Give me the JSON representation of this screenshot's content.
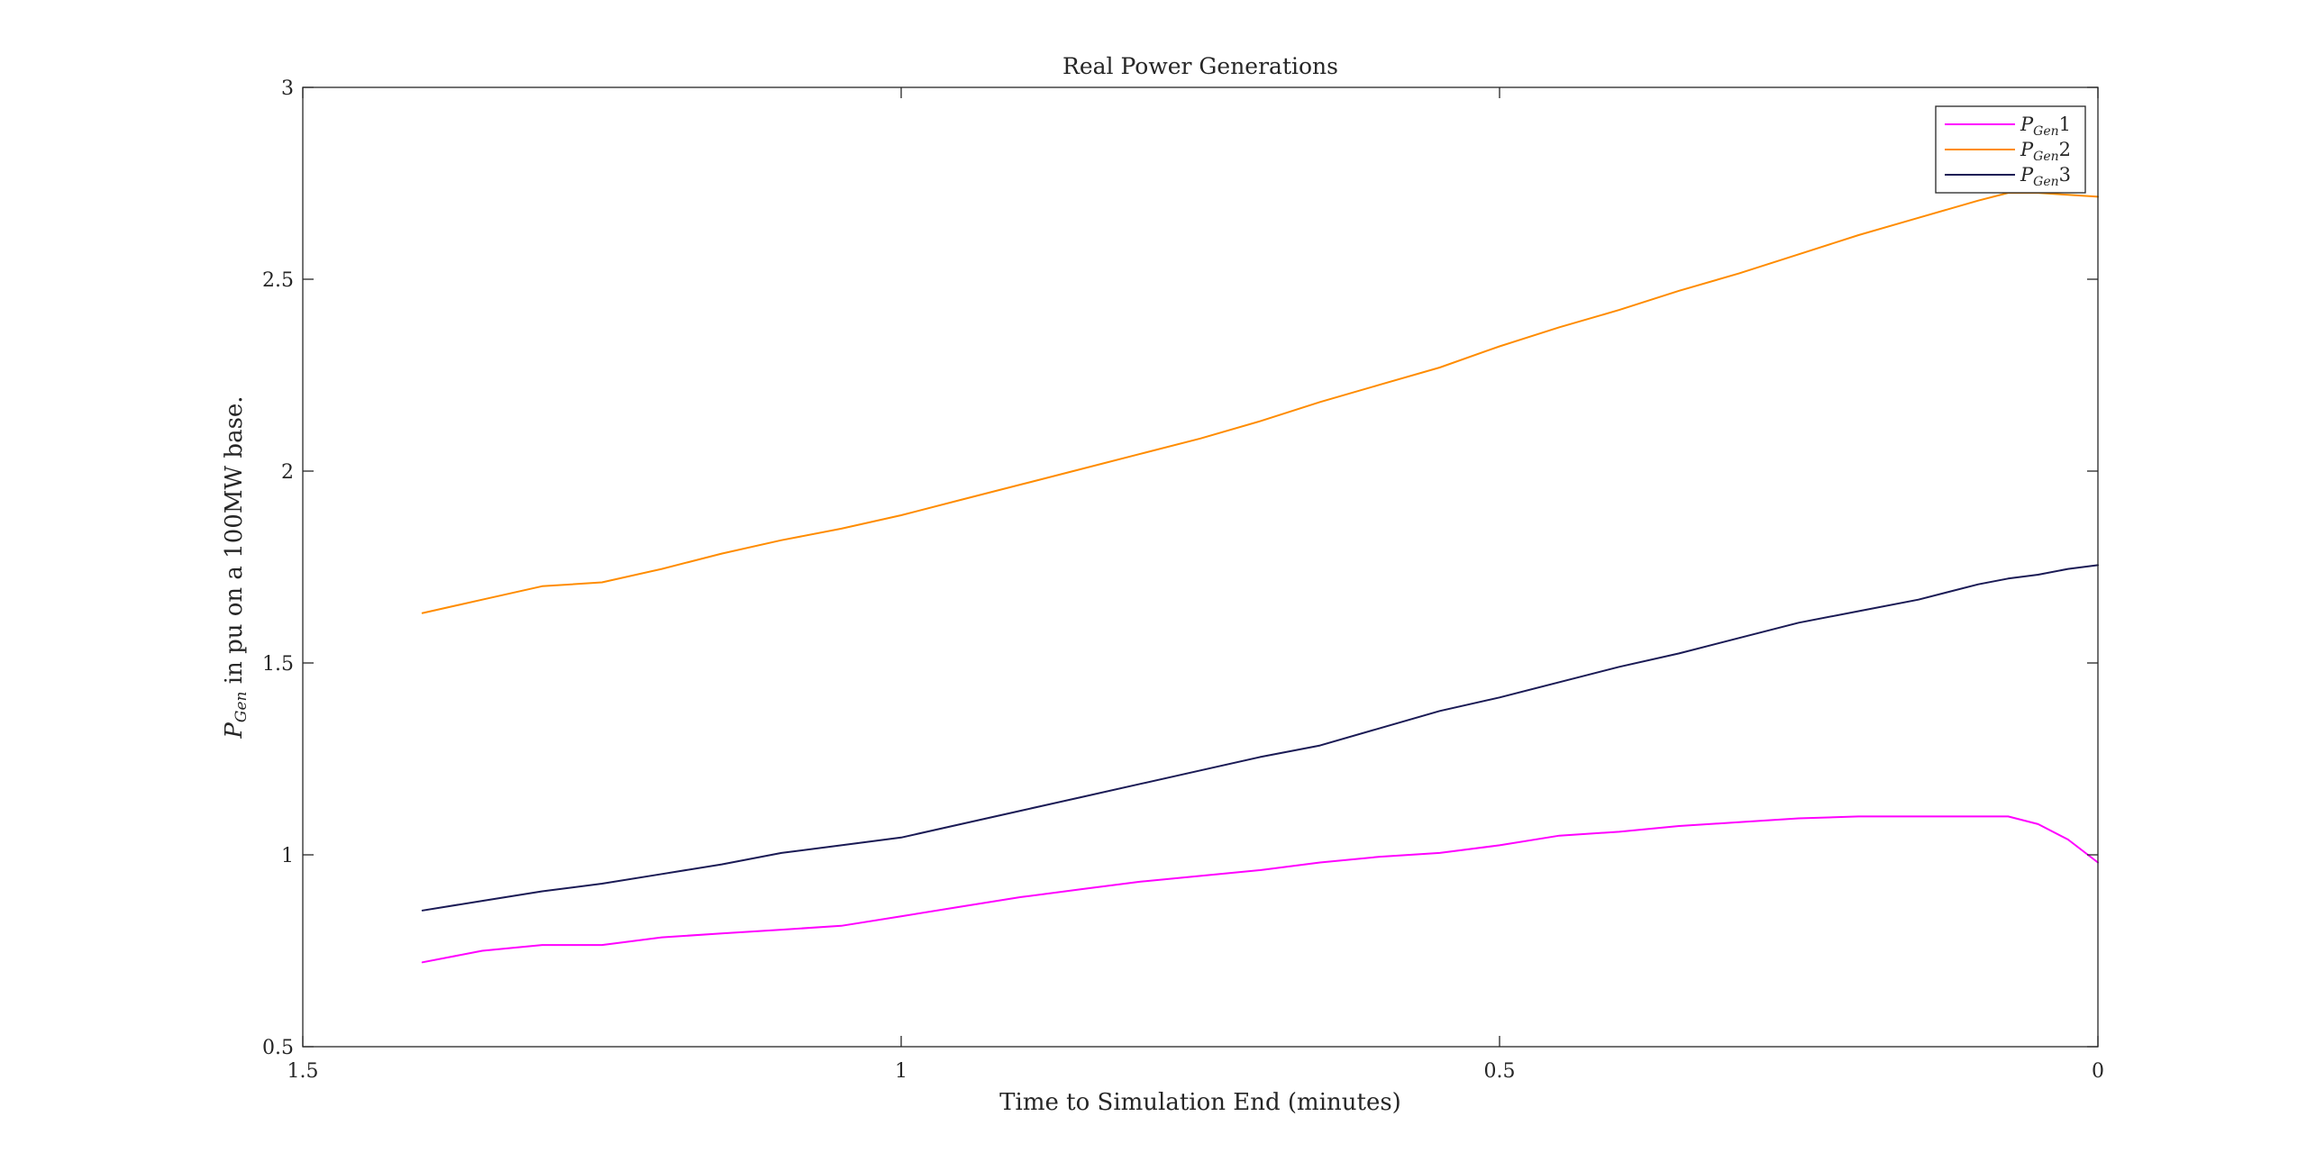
{
  "chart_data": {
    "type": "line",
    "title": "Real Power Generations",
    "xlabel": "Time to Simulation End (minutes)",
    "ylabel": {
      "symbol": "P",
      "subscript": "Gen",
      "rest": " in pu on a 100MW base."
    },
    "xlim": [
      0,
      1.5
    ],
    "x_reversed": true,
    "ylim": [
      0.5,
      3
    ],
    "xticks": [
      1.5,
      1,
      0.5,
      0
    ],
    "xtick_labels": [
      "1.5",
      "1",
      "0.5",
      "0"
    ],
    "yticks": [
      0.5,
      1,
      1.5,
      2,
      2.5,
      3
    ],
    "ytick_labels": [
      "0.5",
      "1",
      "1.5",
      "2",
      "2.5",
      "3"
    ],
    "grid": false,
    "legend_position": "top-right",
    "series": [
      {
        "name": "P_Gen1",
        "legend": {
          "symbol": "P",
          "subscript": "Gen",
          "suffix": "1"
        },
        "color": "#ff00ff",
        "x": [
          1.4,
          1.35,
          1.3,
          1.25,
          1.2,
          1.15,
          1.1,
          1.05,
          1.0,
          0.95,
          0.9,
          0.85,
          0.8,
          0.75,
          0.7,
          0.65,
          0.6,
          0.55,
          0.5,
          0.45,
          0.4,
          0.35,
          0.3,
          0.25,
          0.2,
          0.15,
          0.1,
          0.075,
          0.05,
          0.025,
          0.0
        ],
        "y": [
          0.72,
          0.75,
          0.765,
          0.765,
          0.785,
          0.795,
          0.805,
          0.815,
          0.84,
          0.865,
          0.89,
          0.91,
          0.93,
          0.945,
          0.96,
          0.98,
          0.995,
          1.005,
          1.025,
          1.05,
          1.06,
          1.075,
          1.085,
          1.095,
          1.1,
          1.1,
          1.1,
          1.1,
          1.08,
          1.04,
          0.98
        ]
      },
      {
        "name": "P_Gen2",
        "legend": {
          "symbol": "P",
          "subscript": "Gen",
          "suffix": "2"
        },
        "color": "#ff8c00",
        "x": [
          1.4,
          1.35,
          1.3,
          1.25,
          1.2,
          1.15,
          1.1,
          1.05,
          1.0,
          0.95,
          0.9,
          0.85,
          0.8,
          0.75,
          0.7,
          0.65,
          0.6,
          0.55,
          0.5,
          0.45,
          0.4,
          0.35,
          0.3,
          0.25,
          0.2,
          0.15,
          0.1,
          0.075,
          0.05,
          0.025,
          0.0
        ],
        "y": [
          1.63,
          1.665,
          1.7,
          1.71,
          1.745,
          1.785,
          1.82,
          1.85,
          1.885,
          1.925,
          1.965,
          2.005,
          2.045,
          2.085,
          2.13,
          2.18,
          2.225,
          2.27,
          2.325,
          2.375,
          2.42,
          2.47,
          2.515,
          2.565,
          2.615,
          2.66,
          2.705,
          2.725,
          2.725,
          2.72,
          2.715
        ]
      },
      {
        "name": "P_Gen3",
        "legend": {
          "symbol": "P",
          "subscript": "Gen",
          "suffix": "3"
        },
        "color": "#1a1a55",
        "x": [
          1.4,
          1.35,
          1.3,
          1.25,
          1.2,
          1.15,
          1.1,
          1.05,
          1.0,
          0.95,
          0.9,
          0.85,
          0.8,
          0.75,
          0.7,
          0.65,
          0.6,
          0.55,
          0.5,
          0.45,
          0.4,
          0.35,
          0.3,
          0.25,
          0.2,
          0.15,
          0.1,
          0.075,
          0.05,
          0.025,
          0.0
        ],
        "y": [
          0.855,
          0.88,
          0.905,
          0.925,
          0.95,
          0.975,
          1.005,
          1.025,
          1.045,
          1.08,
          1.115,
          1.15,
          1.185,
          1.22,
          1.255,
          1.285,
          1.33,
          1.375,
          1.41,
          1.45,
          1.49,
          1.525,
          1.565,
          1.605,
          1.635,
          1.665,
          1.705,
          1.72,
          1.73,
          1.745,
          1.755
        ]
      }
    ]
  }
}
